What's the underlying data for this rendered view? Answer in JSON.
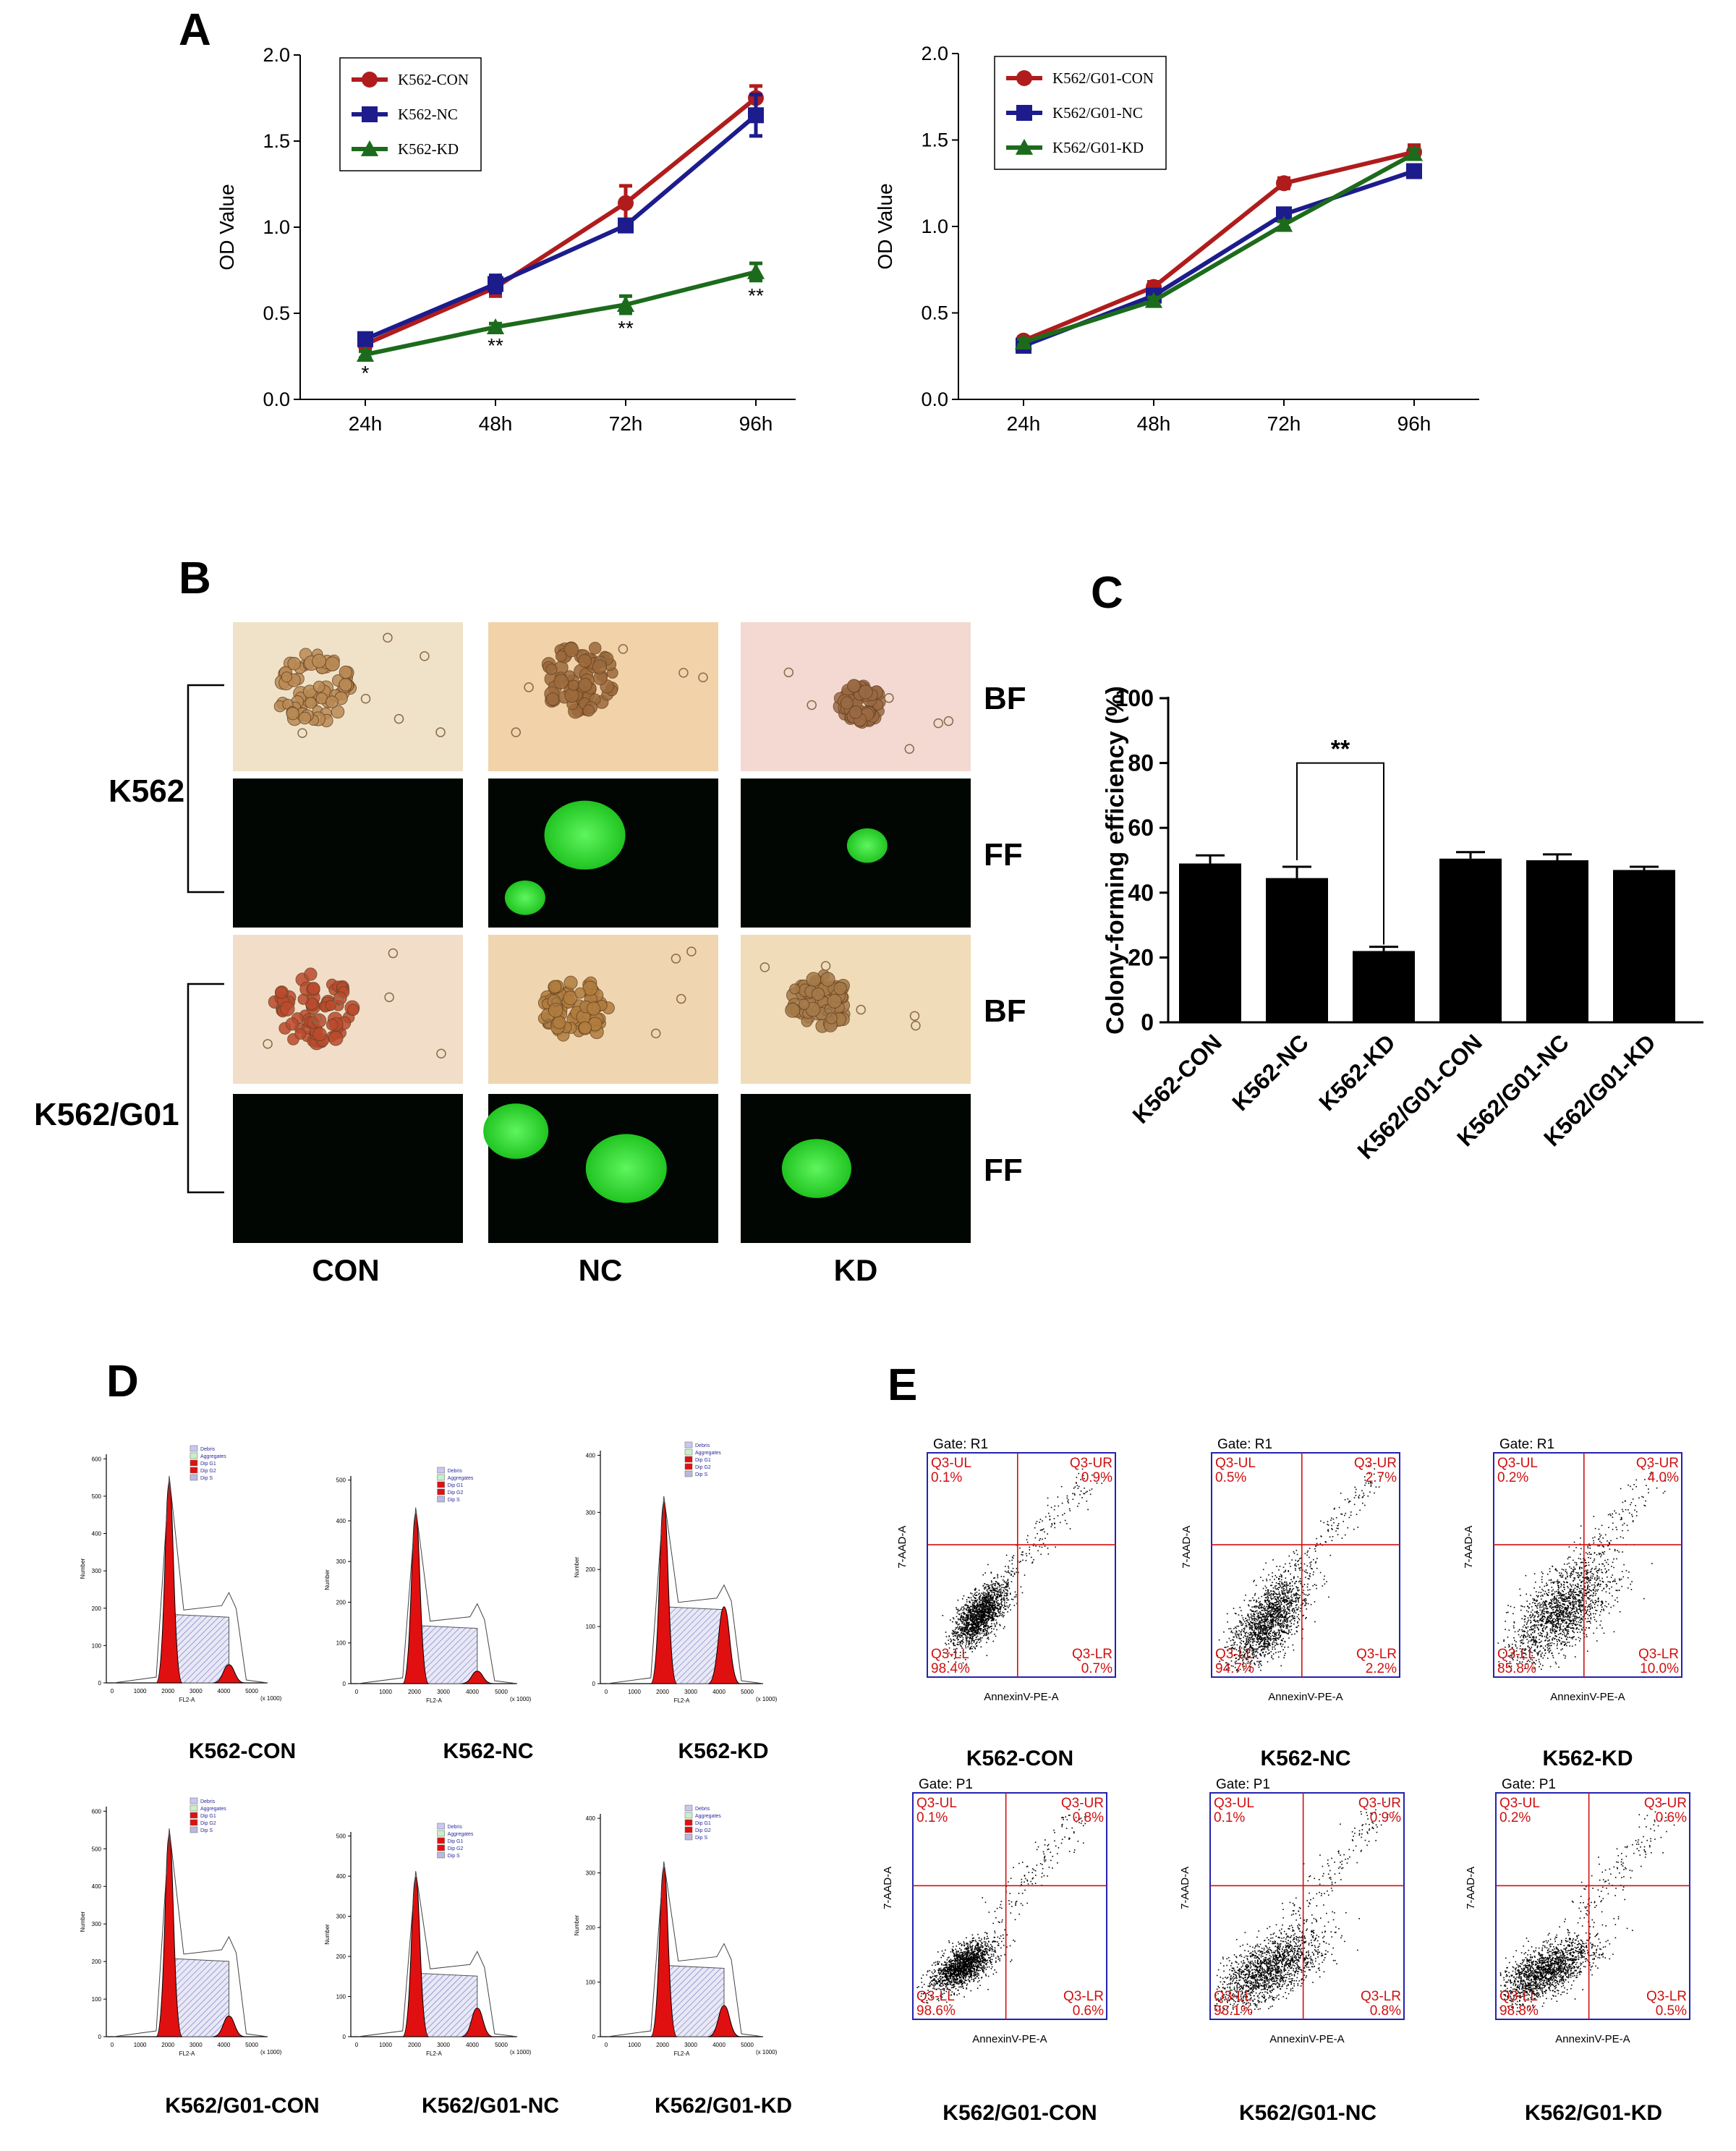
{
  "panel_labels": {
    "a": "A",
    "b": "B",
    "c": "C",
    "d": "D",
    "e": "E"
  },
  "chart_data": [
    {
      "type": "line",
      "panel": "A-left",
      "ylabel": "OD  Value",
      "categories": [
        "24h",
        "48h",
        "72h",
        "96h"
      ],
      "ylim": [
        0,
        2.0
      ],
      "yticks": [
        "0.0",
        "0.5",
        "1.0",
        "1.5",
        "2.0"
      ],
      "legend_position": "top-left",
      "series": [
        {
          "name": "K562-CON",
          "color": "#b01c1c",
          "marker": "circle",
          "values": [
            0.32,
            0.65,
            1.14,
            1.75
          ],
          "errors": [
            0.03,
            0.05,
            0.1,
            0.07
          ]
        },
        {
          "name": "K562-NC",
          "color": "#1c1c8c",
          "marker": "square",
          "values": [
            0.35,
            0.67,
            1.01,
            1.65
          ],
          "errors": [
            0.03,
            0.05,
            0.03,
            0.12
          ]
        },
        {
          "name": "K562-KD",
          "color": "#1c6b1c",
          "marker": "triangle",
          "values": [
            0.26,
            0.42,
            0.55,
            0.74
          ],
          "errors": [
            0.02,
            0.02,
            0.05,
            0.05
          ]
        }
      ],
      "significance": [
        "*",
        "**",
        "**",
        "**"
      ]
    },
    {
      "type": "line",
      "panel": "A-right",
      "ylabel": "OD  Value",
      "categories": [
        "24h",
        "48h",
        "72h",
        "96h"
      ],
      "ylim": [
        0,
        2.0
      ],
      "yticks": [
        "0.0",
        "0.5",
        "1.0",
        "1.5",
        "2.0"
      ],
      "legend_position": "top-left",
      "series": [
        {
          "name": "K562/G01-CON",
          "color": "#b01c1c",
          "marker": "circle",
          "values": [
            0.34,
            0.65,
            1.25,
            1.43
          ],
          "errors": [
            0.02,
            0.03,
            0.03,
            0.04
          ]
        },
        {
          "name": "K562/G01-NC",
          "color": "#1c1c8c",
          "marker": "square",
          "values": [
            0.31,
            0.6,
            1.07,
            1.32
          ],
          "errors": [
            0.02,
            0.02,
            0.02,
            0.03
          ]
        },
        {
          "name": "K562/G01-KD",
          "color": "#1c6b1c",
          "marker": "triangle",
          "values": [
            0.33,
            0.57,
            1.01,
            1.42
          ],
          "errors": [
            0.02,
            0.02,
            0.02,
            0.03
          ]
        }
      ]
    },
    {
      "type": "bar",
      "panel": "C",
      "ylabel": "Colony-forming efficiency (%)",
      "categories": [
        "K562-CON",
        "K562-NC",
        "K562-KD",
        "K562/G01-CON",
        "K562/G01-NC",
        "K562/G01-KD"
      ],
      "values": [
        49,
        44.5,
        22,
        50.5,
        50,
        47
      ],
      "errors": [
        2.5,
        3.5,
        1.3,
        2.0,
        1.8,
        1.0
      ],
      "ylim": [
        0,
        100
      ],
      "yticks": [
        "0",
        "20",
        "40",
        "60",
        "80",
        "100"
      ],
      "bracket": {
        "from": 1,
        "to": 2,
        "label": "**"
      }
    },
    {
      "type": "histogram",
      "panel": "D",
      "xlabel": "FL2-A",
      "ylabel": "Number",
      "x_scale_note": "(x 1000)",
      "xticks": [
        "0",
        "1000",
        "2000",
        "3000",
        "4000",
        "5000"
      ],
      "legend": [
        "Debris",
        "Aggregates",
        "Dip G1",
        "Dip G2",
        "Dip S"
      ],
      "plots": [
        {
          "label": "K562-CON",
          "yticks": [
            "0",
            "100",
            "200",
            "300",
            "400",
            "500",
            "600"
          ]
        },
        {
          "label": "K562-NC",
          "yticks": [
            "0",
            "100",
            "200",
            "300",
            "400",
            "500"
          ]
        },
        {
          "label": "K562-KD",
          "yticks": [
            "0",
            "100",
            "200",
            "300",
            "400"
          ]
        },
        {
          "label": "K562/G01-CON",
          "yticks": [
            "0",
            "100",
            "200",
            "300",
            "400",
            "500",
            "600"
          ]
        },
        {
          "label": "K562/G01-NC",
          "yticks": [
            "0",
            "100",
            "200",
            "300",
            "400",
            "500"
          ]
        },
        {
          "label": "K562/G01-KD",
          "yticks": [
            "0",
            "100",
            "200",
            "300",
            "400"
          ]
        }
      ]
    },
    {
      "type": "scatter",
      "panel": "E",
      "xlabel": "AnnexinV-PE-A",
      "ylabel": "7-AAD-A",
      "plots": [
        {
          "label": "K562-CON",
          "gate": "Gate: R1",
          "ul": [
            "Q3-UL",
            "0.1%"
          ],
          "ur": [
            "Q3-UR",
            "0.9%"
          ],
          "ll": [
            "Q3-LL",
            "98.4%"
          ],
          "lr": [
            "Q3-LR",
            "0.7%"
          ]
        },
        {
          "label": "K562-NC",
          "gate": "Gate: R1",
          "ul": [
            "Q3-UL",
            "0.5%"
          ],
          "ur": [
            "Q3-UR",
            "2.7%"
          ],
          "ll": [
            "Q3-LL",
            "94.7%"
          ],
          "lr": [
            "Q3-LR",
            "2.2%"
          ]
        },
        {
          "label": "K562-KD",
          "gate": "Gate: R1",
          "ul": [
            "Q3-UL",
            "0.2%"
          ],
          "ur": [
            "Q3-UR",
            "4.0%"
          ],
          "ll": [
            "Q3-LL",
            "85.8%"
          ],
          "lr": [
            "Q3-LR",
            "10.0%"
          ]
        },
        {
          "label": "K562/G01-CON",
          "gate": "Gate: P1",
          "ul": [
            "Q3-UL",
            "0.1%"
          ],
          "ur": [
            "Q3-UR",
            "0.8%"
          ],
          "ll": [
            "Q3-LL",
            "98.6%"
          ],
          "lr": [
            "Q3-LR",
            "0.6%"
          ]
        },
        {
          "label": "K562/G01-NC",
          "gate": "Gate: P1",
          "ul": [
            "Q3-UL",
            "0.1%"
          ],
          "ur": [
            "Q3-UR",
            "0.9%"
          ],
          "ll": [
            "Q3-LL",
            "98.1%"
          ],
          "lr": [
            "Q3-LR",
            "0.8%"
          ]
        },
        {
          "label": "K562/G01-KD",
          "gate": "Gate: P1",
          "ul": [
            "Q3-UL",
            "0.2%"
          ],
          "ur": [
            "Q3-UR",
            "0.6%"
          ],
          "ll": [
            "Q3-LL",
            "98.8%"
          ],
          "lr": [
            "Q3-LR",
            "0.5%"
          ]
        }
      ]
    }
  ],
  "panel_b": {
    "row_group_labels": [
      "K562",
      "K562/G01"
    ],
    "row_labels": [
      "BF",
      "FF",
      "BF",
      "FF"
    ],
    "col_labels": [
      "CON",
      "NC",
      "KD"
    ]
  }
}
